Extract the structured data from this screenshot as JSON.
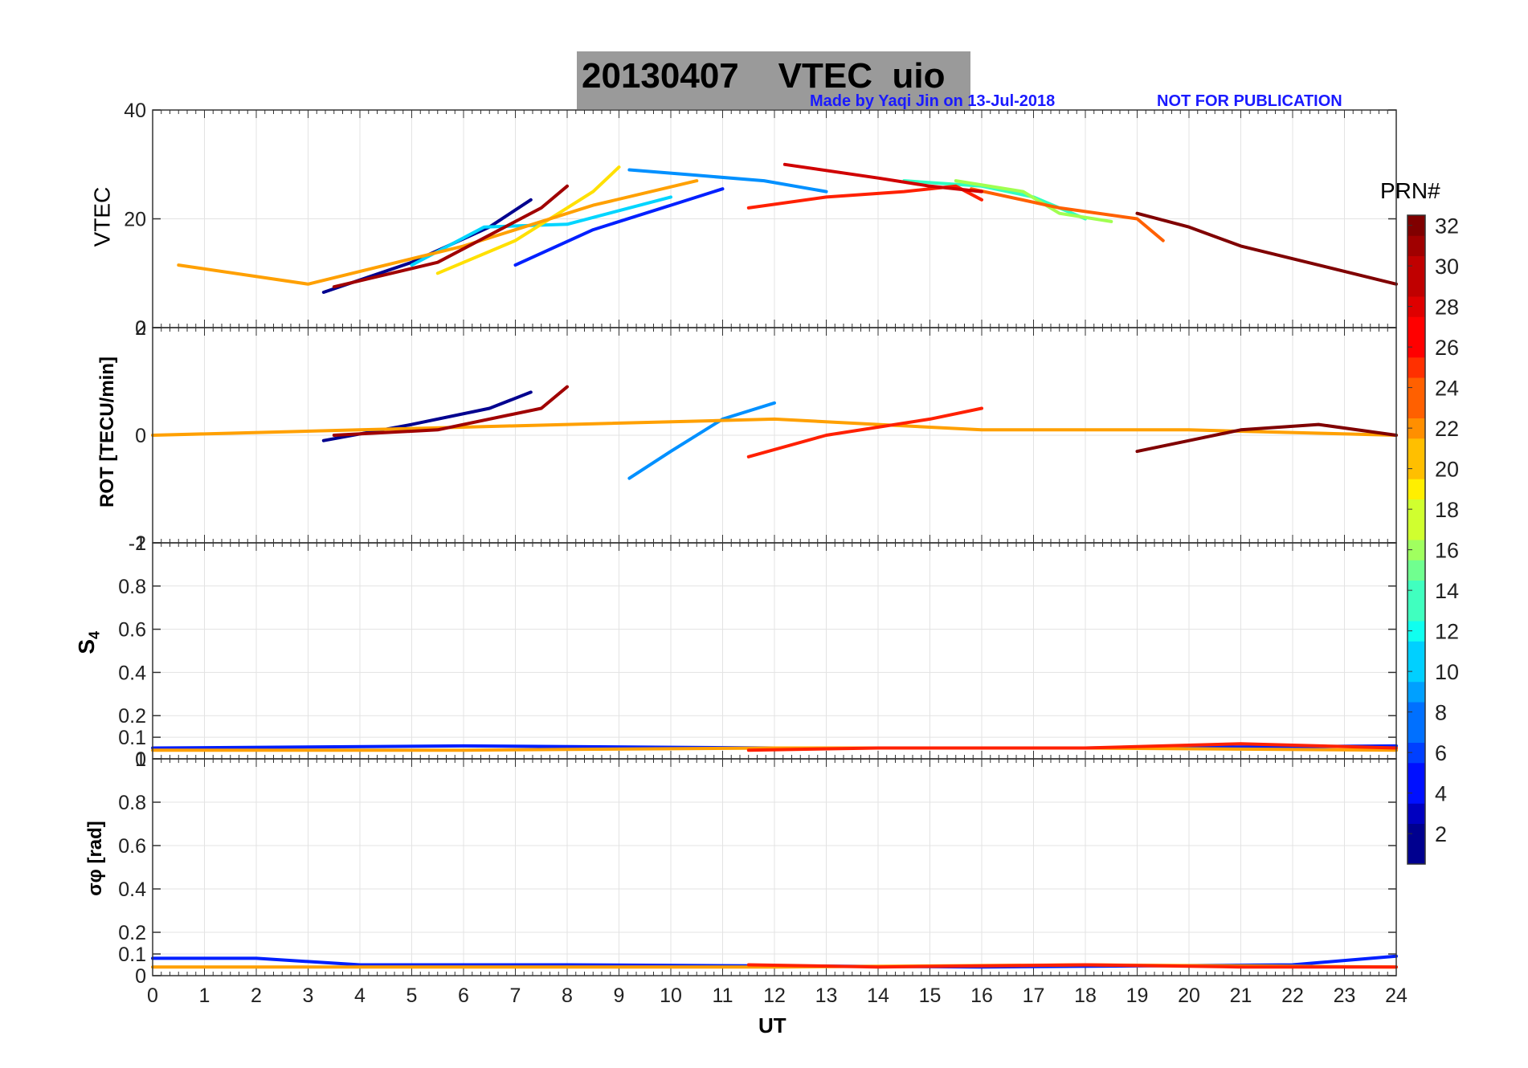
{
  "header": {
    "date": "20130407",
    "product": "VTEC",
    "station": "uio",
    "credit_left": "Made by Yaqi Jin on 13-Jul-2018",
    "credit_right": "NOT FOR PUBLICATION"
  },
  "colorbar": {
    "title": "PRN#",
    "ticks": [
      "2",
      "4",
      "6",
      "8",
      "10",
      "12",
      "14",
      "16",
      "18",
      "20",
      "22",
      "24",
      "26",
      "28",
      "30",
      "32"
    ]
  },
  "chart_data": [
    {
      "type": "line",
      "panel": "VTEC",
      "ylabel": "VTEC",
      "ylim": [
        0,
        40
      ],
      "yticks": [
        "0",
        "20",
        "40"
      ],
      "x_range": [
        0,
        24
      ],
      "grid": true,
      "series": [
        {
          "name": "PRN 1",
          "color": "#00008f",
          "x": [
            3.3,
            5,
            6.5,
            7.3
          ],
          "y": [
            6.5,
            12,
            18.5,
            23.5
          ]
        },
        {
          "name": "PRN 5",
          "color": "#0020ff",
          "x": [
            7.0,
            8.5,
            10.0,
            11.0
          ],
          "y": [
            11.5,
            18,
            22.5,
            25.5
          ]
        },
        {
          "name": "PRN 9",
          "color": "#0090ff",
          "x": [
            9.2,
            10.5,
            11.8,
            13.0
          ],
          "y": [
            29,
            28,
            27,
            25
          ]
        },
        {
          "name": "PRN 12",
          "color": "#00d5ff",
          "x": [
            5.0,
            6.4,
            8.0,
            10.0
          ],
          "y": [
            11.5,
            18.5,
            19,
            24
          ]
        },
        {
          "name": "PRN 15",
          "color": "#30ffc0",
          "x": [
            14.5,
            16.0,
            17.0,
            18.0
          ],
          "y": [
            27,
            26,
            24,
            20
          ]
        },
        {
          "name": "PRN 18",
          "color": "#a0ff50",
          "x": [
            15.5,
            16.8,
            17.5,
            18.5
          ],
          "y": [
            27,
            25,
            21,
            19.5
          ]
        },
        {
          "name": "PRN 20",
          "color": "#ffe000",
          "x": [
            5.5,
            7.0,
            8.5,
            9.0
          ],
          "y": [
            10,
            16,
            25,
            29.5
          ]
        },
        {
          "name": "PRN 22",
          "color": "#ffa000",
          "x": [
            0.5,
            3.0,
            6.0,
            8.5,
            10.5
          ],
          "y": [
            11.5,
            8,
            15,
            22.5,
            27
          ]
        },
        {
          "name": "PRN 24",
          "color": "#ff6000",
          "x": [
            15.8,
            17.5,
            19.0,
            19.5
          ],
          "y": [
            25.5,
            22,
            20,
            16
          ]
        },
        {
          "name": "PRN 27",
          "color": "#ff2000",
          "x": [
            11.5,
            13.0,
            14.5,
            15.5,
            16.0
          ],
          "y": [
            22,
            24,
            25,
            26,
            23.5
          ]
        },
        {
          "name": "PRN 29",
          "color": "#d00000",
          "x": [
            12.2,
            14.0,
            15.0,
            16.0
          ],
          "y": [
            30,
            27.5,
            26,
            25
          ]
        },
        {
          "name": "PRN 31",
          "color": "#a00000",
          "x": [
            3.5,
            5.5,
            7.5,
            8.0
          ],
          "y": [
            7.5,
            12,
            22,
            26
          ]
        },
        {
          "name": "PRN 32",
          "color": "#800000",
          "x": [
            19.0,
            20.0,
            21.0,
            22.5,
            24.0
          ],
          "y": [
            21,
            18.5,
            15,
            11.5,
            8
          ]
        }
      ]
    },
    {
      "type": "line",
      "panel": "ROT",
      "ylabel": "ROT [TECU/min]",
      "ylim": [
        -2,
        2
      ],
      "yticks": [
        "-2",
        "0",
        "2"
      ],
      "x_range": [
        0,
        24
      ],
      "grid": true,
      "series": [
        {
          "name": "PRN 1",
          "color": "#00008f",
          "x": [
            3.3,
            5,
            6.5,
            7.3
          ],
          "y": [
            -0.1,
            0.2,
            0.5,
            0.8
          ]
        },
        {
          "name": "PRN 9",
          "color": "#0090ff",
          "x": [
            9.2,
            10.0,
            11.0,
            12.0
          ],
          "y": [
            -0.8,
            -0.3,
            0.3,
            0.6
          ]
        },
        {
          "name": "PRN 22",
          "color": "#ffa000",
          "x": [
            0,
            4,
            8,
            12,
            16,
            20,
            24
          ],
          "y": [
            0,
            0.1,
            0.2,
            0.3,
            0.1,
            0.1,
            0
          ]
        },
        {
          "name": "PRN 27",
          "color": "#ff2000",
          "x": [
            11.5,
            13,
            15,
            16
          ],
          "y": [
            -0.4,
            0,
            0.3,
            0.5
          ]
        },
        {
          "name": "PRN 31",
          "color": "#a00000",
          "x": [
            3.5,
            5.5,
            7.5,
            8.0
          ],
          "y": [
            0,
            0.1,
            0.5,
            0.9
          ]
        },
        {
          "name": "PRN 32",
          "color": "#800000",
          "x": [
            19.0,
            20.0,
            21.0,
            22.5,
            24.0
          ],
          "y": [
            -0.3,
            -0.1,
            0.1,
            0.2,
            0
          ]
        }
      ]
    },
    {
      "type": "line",
      "panel": "S4",
      "ylabel": "S4",
      "ylim": [
        0,
        1
      ],
      "yticks": [
        "0",
        "0.1",
        "0.2",
        "0.4",
        "0.6",
        "0.8",
        "1"
      ],
      "x_range": [
        0,
        24
      ],
      "grid": true,
      "series": [
        {
          "name": "PRN 5",
          "color": "#0020ff",
          "x": [
            0,
            6,
            12,
            18,
            24
          ],
          "y": [
            0.05,
            0.06,
            0.05,
            0.05,
            0.06
          ]
        },
        {
          "name": "PRN 22",
          "color": "#ffa000",
          "x": [
            0,
            6,
            12,
            18,
            24
          ],
          "y": [
            0.04,
            0.04,
            0.05,
            0.05,
            0.04
          ]
        },
        {
          "name": "PRN 27",
          "color": "#ff2000",
          "x": [
            11.5,
            14,
            18,
            21,
            24
          ],
          "y": [
            0.04,
            0.05,
            0.05,
            0.07,
            0.05
          ]
        }
      ]
    },
    {
      "type": "line",
      "panel": "sigma_phi",
      "ylabel": "σφ [rad]",
      "ylim": [
        0,
        1
      ],
      "yticks": [
        "0",
        "0.1",
        "0.2",
        "0.4",
        "0.6",
        "0.8",
        "1"
      ],
      "x_range": [
        0,
        24
      ],
      "xlabel": "UT",
      "xticks": [
        "0",
        "1",
        "2",
        "3",
        "4",
        "5",
        "6",
        "7",
        "8",
        "9",
        "10",
        "11",
        "12",
        "13",
        "14",
        "15",
        "16",
        "17",
        "18",
        "19",
        "20",
        "21",
        "22",
        "23",
        "24"
      ],
      "grid": true,
      "series": [
        {
          "name": "PRN 5",
          "color": "#0020ff",
          "x": [
            0,
            2,
            4,
            8,
            16,
            22,
            24
          ],
          "y": [
            0.08,
            0.08,
            0.05,
            0.05,
            0.04,
            0.05,
            0.09
          ]
        },
        {
          "name": "PRN 22",
          "color": "#ffa000",
          "x": [
            0,
            6,
            12,
            18,
            24
          ],
          "y": [
            0.04,
            0.04,
            0.04,
            0.05,
            0.04
          ]
        },
        {
          "name": "PRN 27",
          "color": "#ff2000",
          "x": [
            11.5,
            14,
            18,
            21,
            24
          ],
          "y": [
            0.05,
            0.04,
            0.05,
            0.04,
            0.04
          ]
        }
      ]
    }
  ]
}
